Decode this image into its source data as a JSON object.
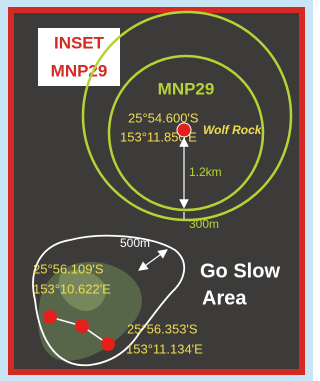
{
  "inset": {
    "title_lines": [
      "INSET",
      "MNP29"
    ]
  },
  "zone": {
    "name": "MNP29",
    "radius_label": "1.2km",
    "buffer_label": "300m"
  },
  "wolf_rock": {
    "name": "Wolf Rock",
    "lat": "25°54.600'S",
    "lon": "153°11.850'E"
  },
  "go_slow": {
    "label_lines": [
      "Go Slow",
      "Area"
    ],
    "distance_label": "500m",
    "points": [
      {
        "lat": "25°56.109'S",
        "lon": "153°10.622'E"
      },
      {
        "lat": "25°56.353'S",
        "lon": "153°11.134'E"
      }
    ]
  }
}
